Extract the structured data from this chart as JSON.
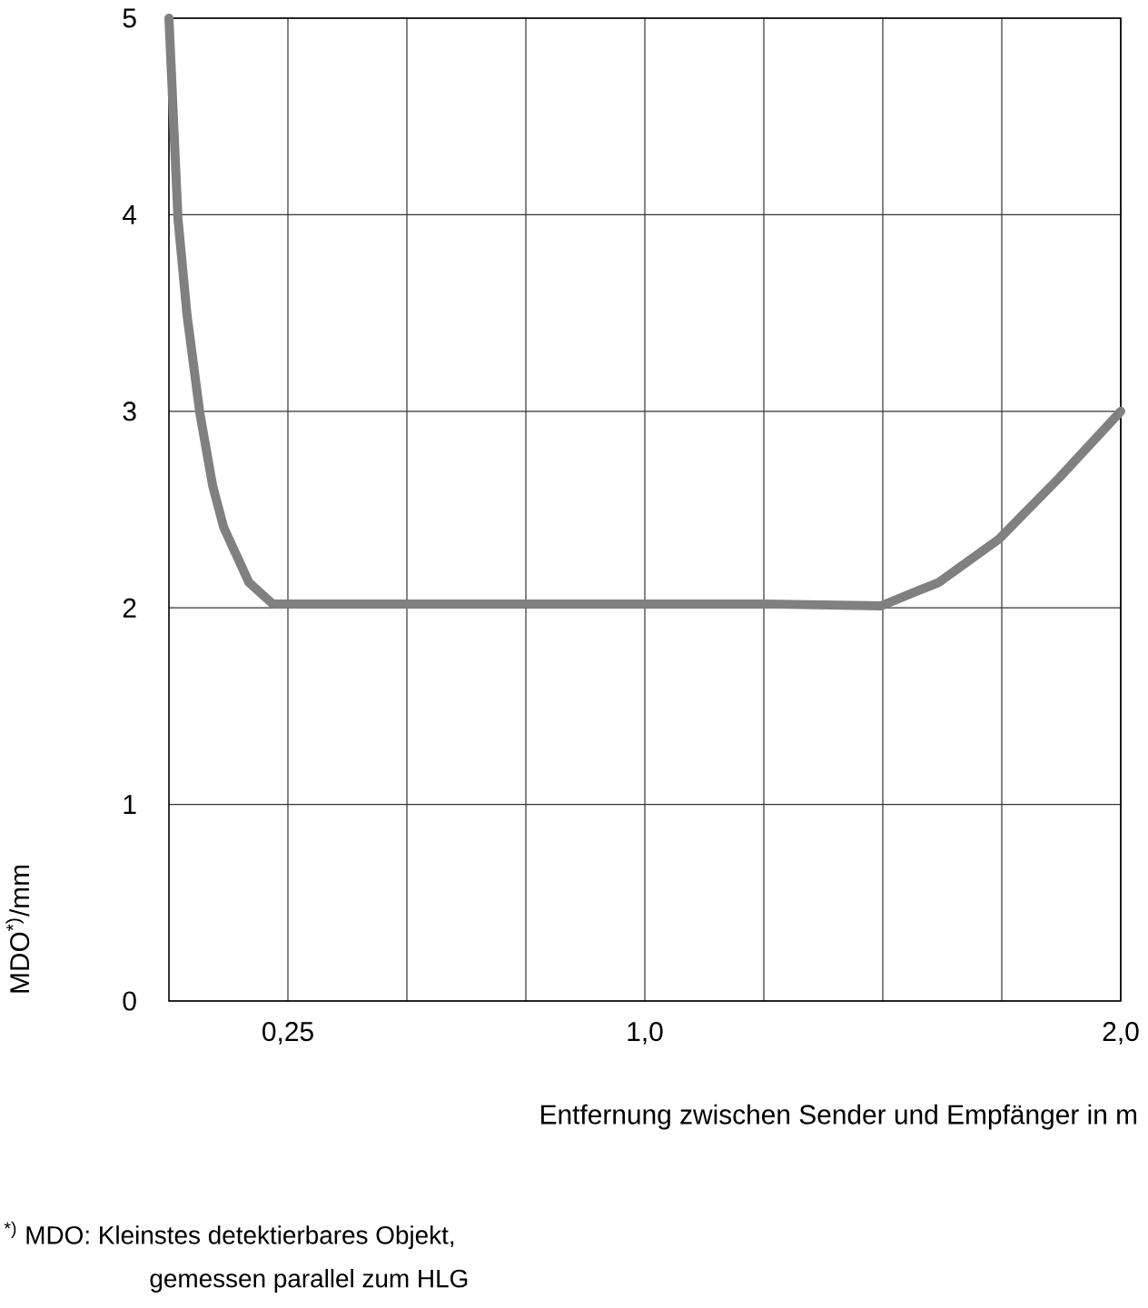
{
  "chart_data": {
    "type": "line",
    "xlabel": "Entfernung zwischen Sender und Empfänger in m",
    "ylabel": "MDO$^{*)}$/mm",
    "annotations": [
      "$^{*)}$ MDO:  Kleinstes detektierbares Objekt,",
      "gemessen parallel zum HLG"
    ],
    "x": [
      0,
      0.019,
      0.038,
      0.065,
      0.092,
      0.115,
      0.168,
      0.218,
      0.5,
      0.75,
      1.0,
      1.25,
      1.496,
      1.618,
      1.744,
      1.87,
      2.0
    ],
    "series": [
      {
        "color": "#808080",
        "values": [
          5,
          3.98,
          3.49,
          2.99,
          2.62,
          2.41,
          2.13,
          2.02,
          2.02,
          2.02,
          2.02,
          2.02,
          2.01,
          2.13,
          2.35,
          2.66,
          3.0
        ]
      }
    ],
    "xlim": [
      0,
      2.0
    ],
    "ylim": [
      0,
      5
    ],
    "xticks": [
      {
        "value": 0.25,
        "label": "0,25"
      },
      {
        "value": 0.5,
        "label": null
      },
      {
        "value": 0.75,
        "label": null
      },
      {
        "value": 1.0,
        "label": "1,0"
      },
      {
        "value": 1.25,
        "label": null
      },
      {
        "value": 1.5,
        "label": null
      },
      {
        "value": 1.75,
        "label": null
      },
      {
        "value": 2.0,
        "label": "2,0"
      }
    ],
    "yticks": [
      0,
      1,
      2,
      3,
      4,
      5
    ],
    "grid": true,
    "line_style": "solid",
    "marker": "none"
  }
}
